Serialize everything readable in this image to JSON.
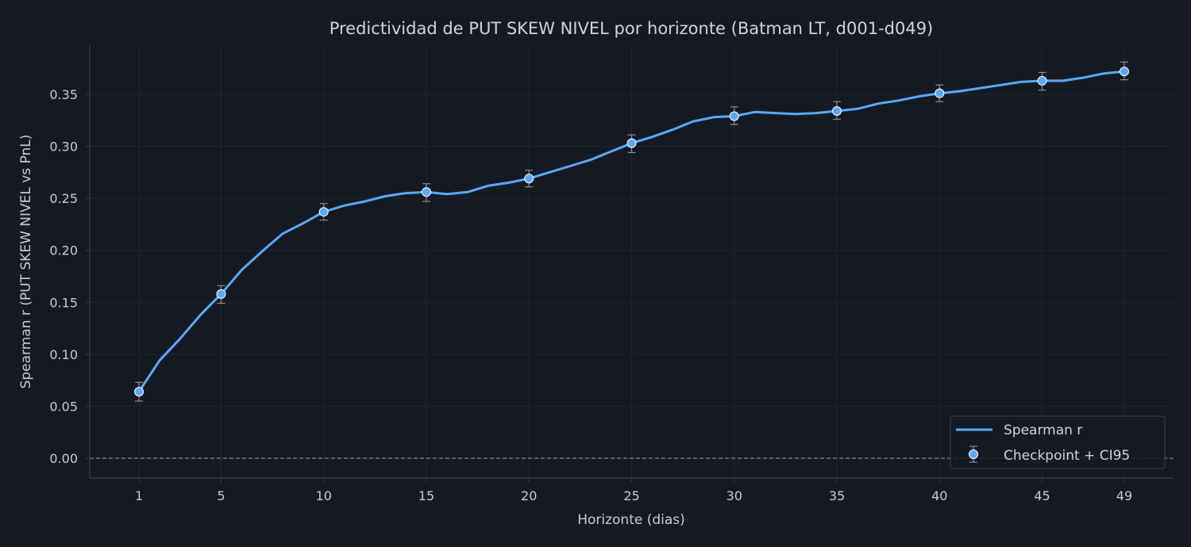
{
  "chart_data": {
    "type": "line",
    "title": "Predictividad de PUT SKEW NIVEL por horizonte (Batman LT, d001-d049)",
    "xlabel": "Horizonte (dias)",
    "ylabel": "Spearman r (PUT SKEW NIVEL vs PnL)",
    "xlim": [
      -1.4,
      51.4
    ],
    "ylim": [
      -0.019,
      0.398
    ],
    "x_ticks": [
      1,
      5,
      10,
      15,
      20,
      25,
      30,
      35,
      40,
      45,
      49
    ],
    "y_ticks": [
      0.0,
      0.05,
      0.1,
      0.15,
      0.2,
      0.25,
      0.3,
      0.35
    ],
    "y_tick_labels": [
      "0.00",
      "0.05",
      "0.10",
      "0.15",
      "0.20",
      "0.25",
      "0.30",
      "0.35"
    ],
    "grid": true,
    "zero_line": true,
    "legend_position": "lower-right",
    "colors": {
      "background": "#151a22",
      "line": "#5aa9ff",
      "marker_face": "#5aa9ff",
      "marker_edge": "#ffffff",
      "errorbar": "#8a9098",
      "grid": "#1f2530",
      "spine": "#3a404a",
      "zero_line": "#8a9098"
    },
    "series": [
      {
        "name": "Spearman r",
        "x": [
          1,
          2,
          3,
          4,
          5,
          6,
          7,
          8,
          9,
          10,
          11,
          12,
          13,
          14,
          15,
          16,
          17,
          18,
          19,
          20,
          21,
          22,
          23,
          24,
          25,
          26,
          27,
          28,
          29,
          30,
          31,
          32,
          33,
          34,
          35,
          36,
          37,
          38,
          39,
          40,
          41,
          42,
          43,
          44,
          45,
          46,
          47,
          48,
          49
        ],
        "y": [
          0.064,
          0.094,
          0.115,
          0.138,
          0.158,
          0.181,
          0.199,
          0.216,
          0.226,
          0.237,
          0.243,
          0.247,
          0.252,
          0.255,
          0.256,
          0.254,
          0.256,
          0.262,
          0.265,
          0.269,
          0.275,
          0.281,
          0.287,
          0.295,
          0.303,
          0.309,
          0.316,
          0.324,
          0.328,
          0.329,
          0.333,
          0.332,
          0.331,
          0.332,
          0.334,
          0.336,
          0.341,
          0.344,
          0.348,
          0.351,
          0.353,
          0.356,
          0.359,
          0.362,
          0.363,
          0.363,
          0.366,
          0.37,
          0.372
        ]
      },
      {
        "name": "Checkpoint + CI95",
        "x": [
          1,
          5,
          10,
          15,
          20,
          25,
          30,
          35,
          40,
          45,
          49
        ],
        "y": [
          0.064,
          0.158,
          0.237,
          0.256,
          0.269,
          0.303,
          0.329,
          0.334,
          0.351,
          0.363,
          0.372
        ],
        "ci_low": [
          0.055,
          0.149,
          0.229,
          0.247,
          0.261,
          0.294,
          0.321,
          0.326,
          0.343,
          0.354,
          0.364
        ],
        "ci_high": [
          0.073,
          0.166,
          0.245,
          0.264,
          0.277,
          0.311,
          0.338,
          0.343,
          0.359,
          0.371,
          0.381
        ]
      }
    ]
  }
}
